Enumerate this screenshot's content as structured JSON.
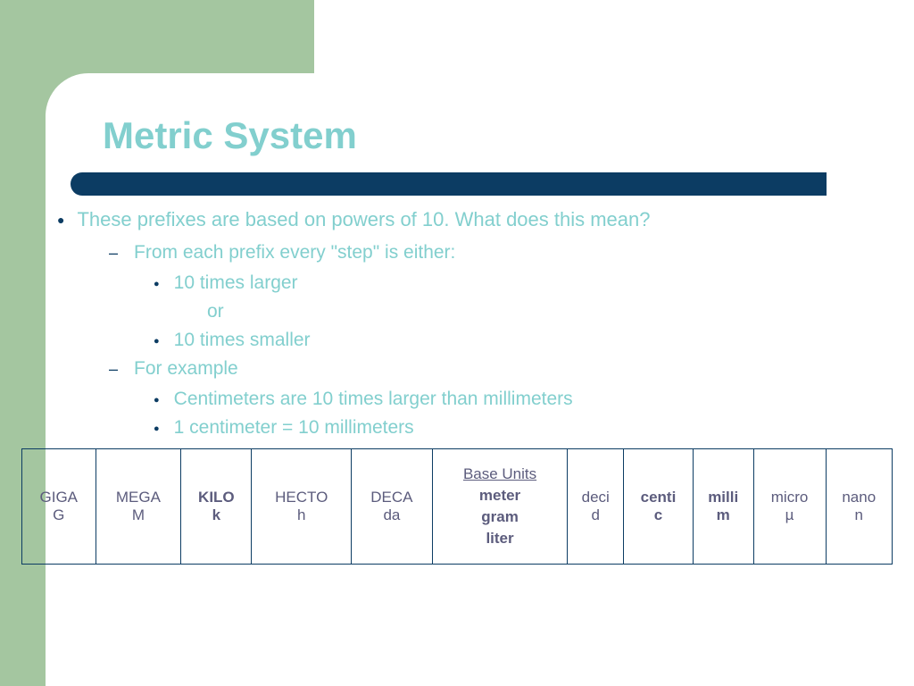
{
  "colors": {
    "green_bg": "#a4c6a0",
    "white": "#ffffff",
    "title_text": "#82cfce",
    "underline_bar": "#0c3c63",
    "body_text": "#82cfce",
    "bullet_marker": "#0c3c63",
    "table_border": "#0c3c63",
    "table_text": "#5c5c7d"
  },
  "title": "Metric System",
  "bullets": {
    "main": "These prefixes are based on powers of 10. What does this mean?",
    "sub1": "From each prefix every \"step\" is either:",
    "sub1_a": "10 times larger",
    "sub1_or": "or",
    "sub1_b": "10 times smaller",
    "sub2": "For example",
    "sub2_a": "Centimeters are 10 times larger than millimeters",
    "sub2_b": "1 centimeter = 10 millimeters"
  },
  "table": {
    "cells": [
      {
        "name": "GIGA",
        "sym": "G",
        "bold": false
      },
      {
        "name": "MEGA",
        "sym": "M",
        "bold": false
      },
      {
        "name": "KILO",
        "sym": "k",
        "bold": true
      },
      {
        "name": "HECTO",
        "sym": "h",
        "bold": false
      },
      {
        "name": "DECA",
        "sym": "da",
        "bold": false
      },
      {
        "base": true,
        "label": "Base Units",
        "u1": "meter",
        "u2": "gram",
        "u3": "liter"
      },
      {
        "name": "deci",
        "sym": "d",
        "bold": false
      },
      {
        "name": "centi",
        "sym": "c",
        "bold": true
      },
      {
        "name": "milli",
        "sym": "m",
        "bold": true
      },
      {
        "name": "micro",
        "sym": "µ",
        "bold": false
      },
      {
        "name": "nano",
        "sym": "n",
        "bold": false
      }
    ]
  }
}
